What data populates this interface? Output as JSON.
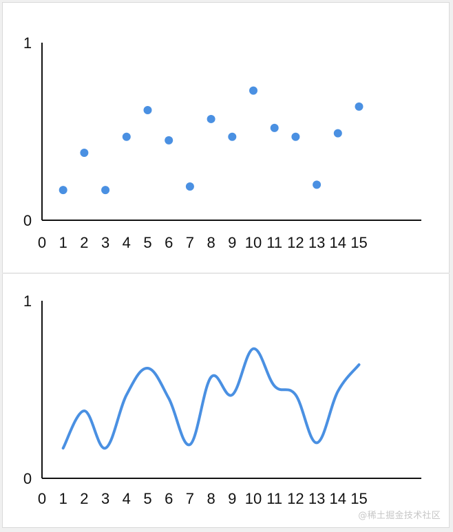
{
  "chart_data": [
    {
      "type": "scatter",
      "title": "",
      "xlabel": "",
      "ylabel": "",
      "x": [
        1,
        2,
        3,
        4,
        5,
        6,
        7,
        8,
        9,
        10,
        11,
        12,
        13,
        14,
        15
      ],
      "values": [
        0.17,
        0.38,
        0.17,
        0.47,
        0.62,
        0.45,
        0.19,
        0.57,
        0.47,
        0.73,
        0.52,
        0.47,
        0.2,
        0.49,
        0.64
      ],
      "xlim": [
        0,
        15
      ],
      "ylim": [
        0,
        1
      ],
      "x_ticks": [
        "0",
        "1",
        "2",
        "3",
        "4",
        "5",
        "6",
        "7",
        "8",
        "9",
        "10",
        "11",
        "12",
        "13",
        "14",
        "15"
      ],
      "y_ticks": [
        "0",
        "1"
      ],
      "grid": false,
      "color": "#4a90e2"
    },
    {
      "type": "line",
      "title": "",
      "xlabel": "",
      "ylabel": "",
      "x": [
        1,
        2,
        3,
        4,
        5,
        6,
        7,
        8,
        9,
        10,
        11,
        12,
        13,
        14,
        15
      ],
      "values": [
        0.17,
        0.38,
        0.17,
        0.47,
        0.62,
        0.45,
        0.19,
        0.57,
        0.47,
        0.73,
        0.52,
        0.47,
        0.2,
        0.49,
        0.64
      ],
      "xlim": [
        0,
        15
      ],
      "ylim": [
        0,
        1
      ],
      "x_ticks": [
        "0",
        "1",
        "2",
        "3",
        "4",
        "5",
        "6",
        "7",
        "8",
        "9",
        "10",
        "11",
        "12",
        "13",
        "14",
        "15"
      ],
      "y_ticks": [
        "0",
        "1"
      ],
      "smooth": true,
      "grid": false,
      "color": "#4a90e2"
    }
  ],
  "watermark": "@稀土掘金技术社区"
}
